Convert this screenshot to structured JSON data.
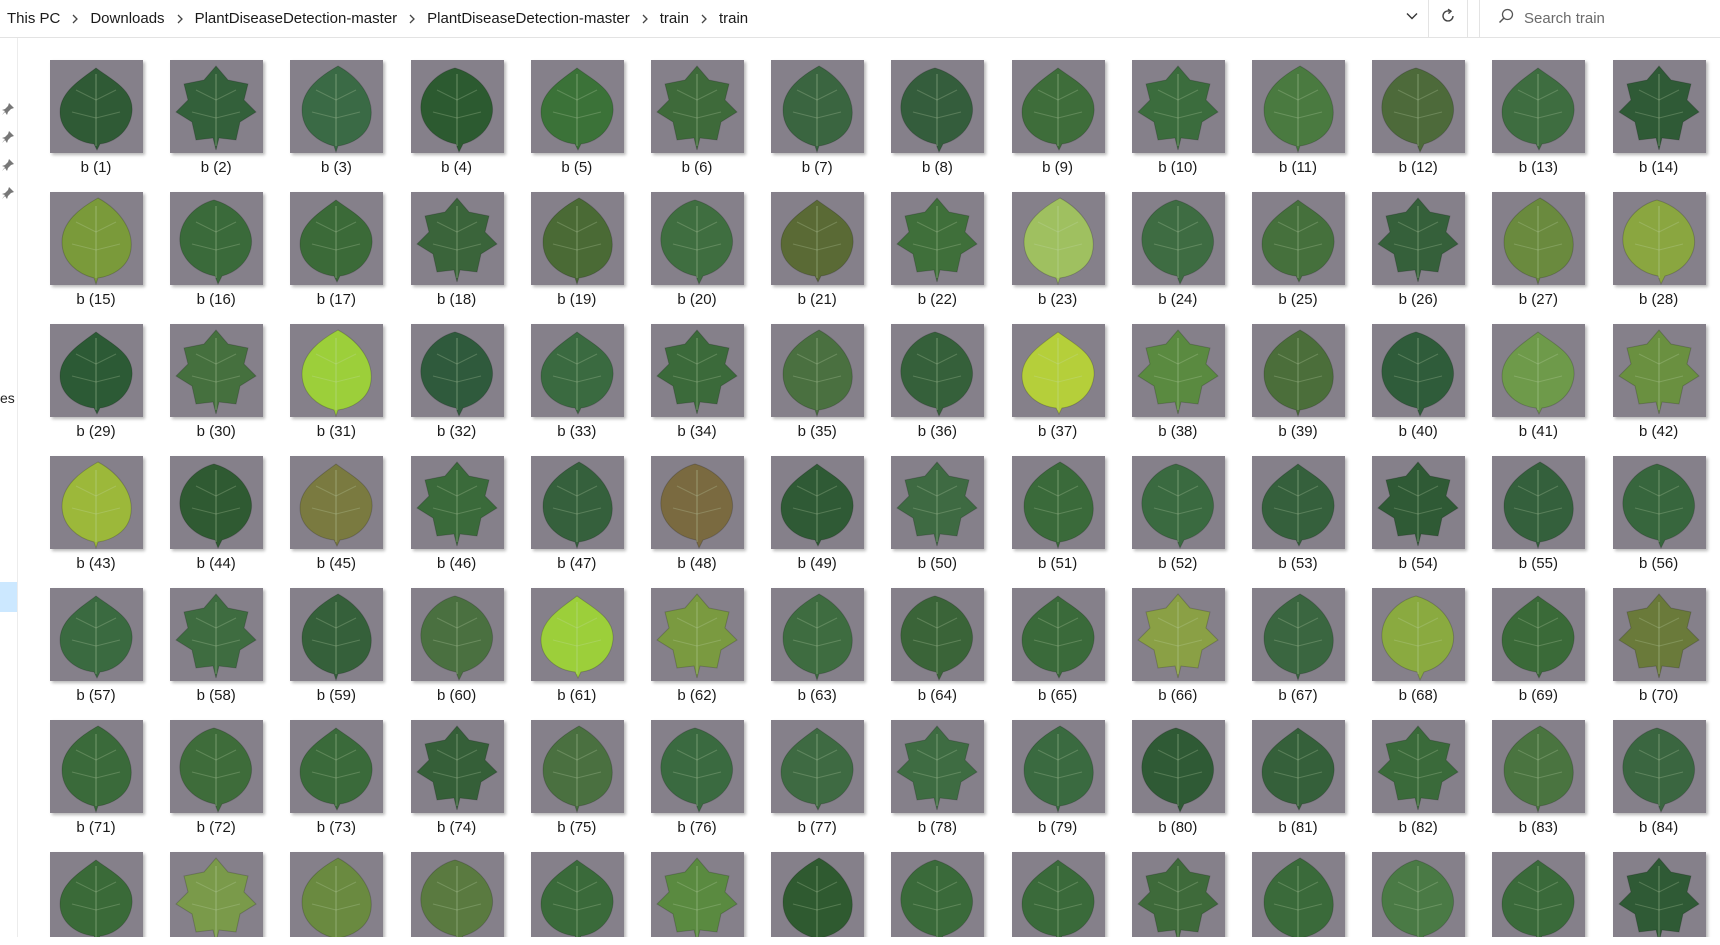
{
  "breadcrumb": {
    "items": [
      "This PC",
      "Downloads",
      "PlantDiseaseDetection-master",
      "PlantDiseaseDetection-master",
      "train",
      "train"
    ],
    "separator_icon": "chevron-right-icon"
  },
  "address_bar": {
    "dropdown_icon": "chevron-down-icon",
    "refresh_icon": "refresh-icon"
  },
  "search": {
    "placeholder": "Search train",
    "icon": "search-icon"
  },
  "nav_pane": {
    "fragment_text": "es",
    "pin_icon": "pin-icon"
  },
  "files": {
    "labels": [
      "b (1)",
      "b (2)",
      "b (3)",
      "b (4)",
      "b (5)",
      "b (6)",
      "b (7)",
      "b (8)",
      "b (9)",
      "b (10)",
      "b (11)",
      "b (12)",
      "b (13)",
      "b (14)",
      "b (15)",
      "b (16)",
      "b (17)",
      "b (18)",
      "b (19)",
      "b (20)",
      "b (21)",
      "b (22)",
      "b (23)",
      "b (24)",
      "b (25)",
      "b (26)",
      "b (27)",
      "b (28)",
      "b (29)",
      "b (30)",
      "b (31)",
      "b (32)",
      "b (33)",
      "b (34)",
      "b (35)",
      "b (36)",
      "b (37)",
      "b (38)",
      "b (39)",
      "b (40)",
      "b (41)",
      "b (42)",
      "b (43)",
      "b (44)",
      "b (45)",
      "b (46)",
      "b (47)",
      "b (48)",
      "b (49)",
      "b (50)",
      "b (51)",
      "b (52)",
      "b (53)",
      "b (54)",
      "b (55)",
      "b (56)",
      "b (57)",
      "b (58)",
      "b (59)",
      "b (60)",
      "b (61)",
      "b (62)",
      "b (63)",
      "b (64)",
      "b (65)",
      "b (66)",
      "b (67)",
      "b (68)",
      "b (69)",
      "b (70)",
      "b (71)",
      "b (72)",
      "b (73)",
      "b (74)",
      "b (75)",
      "b (76)",
      "b (77)",
      "b (78)",
      "b (79)",
      "b (80)",
      "b (81)",
      "b (82)",
      "b (83)",
      "b (84)",
      "",
      "",
      "",
      "",
      "",
      "",
      "",
      "",
      "",
      "",
      "",
      "",
      "",
      ""
    ],
    "leaf_colors": [
      "#2f5a35",
      "#33603a",
      "#3a6a45",
      "#2c5a30",
      "#3b7238",
      "#3e6a3a",
      "#3a6540",
      "#345d3c",
      "#3e6d3a",
      "#3b6c3d",
      "#4a7a40",
      "#4d6a3a",
      "#3e6d40",
      "#2f5a36",
      "#7a9a3a",
      "#3a6a3a",
      "#3b6a38",
      "#3a643a",
      "#4a6a35",
      "#3f6e40",
      "#5a6a35",
      "#3f6f3a",
      "#9fc060",
      "#3e6c42",
      "#45703c",
      "#35603a",
      "#6a8a3e",
      "#8aa640",
      "#2c5a35",
      "#45703e",
      "#9ccf3a",
      "#2f5a3c",
      "#3a6a40",
      "#3b6a3a",
      "#4a7040",
      "#35603a",
      "#b5cf3a",
      "#5a8a40",
      "#4b6e3a",
      "#2f5c3a",
      "#6e9a4a",
      "#6a9040",
      "#9cb83a",
      "#2f5a32",
      "#7a7a40",
      "#3a6a3a",
      "#35603c",
      "#7a6a40",
      "#2f5a35",
      "#3e6a42",
      "#3a6a3a",
      "#3a6a40",
      "#35603c",
      "#2f5a35",
      "#34603c",
      "#37663d",
      "#3a6a40",
      "#3e6c40",
      "#35603a",
      "#4a7040",
      "#9ccf3a",
      "#7a9a40",
      "#3e6c40",
      "#3a6438",
      "#3a6a3a",
      "#8aa045",
      "#3a6640",
      "#8aaa40",
      "#3a6a38",
      "#6a7a3a",
      "#3a6a3a",
      "#3e6c3a",
      "#3a6a3a",
      "#355f38",
      "#4a7040",
      "#3a6a40",
      "#3e6a42",
      "#3e6c42",
      "#3a6a40",
      "#2f5a35",
      "#35603a",
      "#3a6a3a",
      "#4a7440",
      "#3a6640",
      "#3a6a38",
      "#7a9a4a",
      "#6a8a40",
      "#5a7a40",
      "#3a6a3a",
      "#5a8a40",
      "#2f5a30",
      "#3a6a3a",
      "#3a6a3a",
      "#3e6a3a",
      "#3a6a3a",
      "#4a7a45",
      "#3a6a3a",
      "#2f5a35"
    ],
    "background_color": "#85808a"
  }
}
